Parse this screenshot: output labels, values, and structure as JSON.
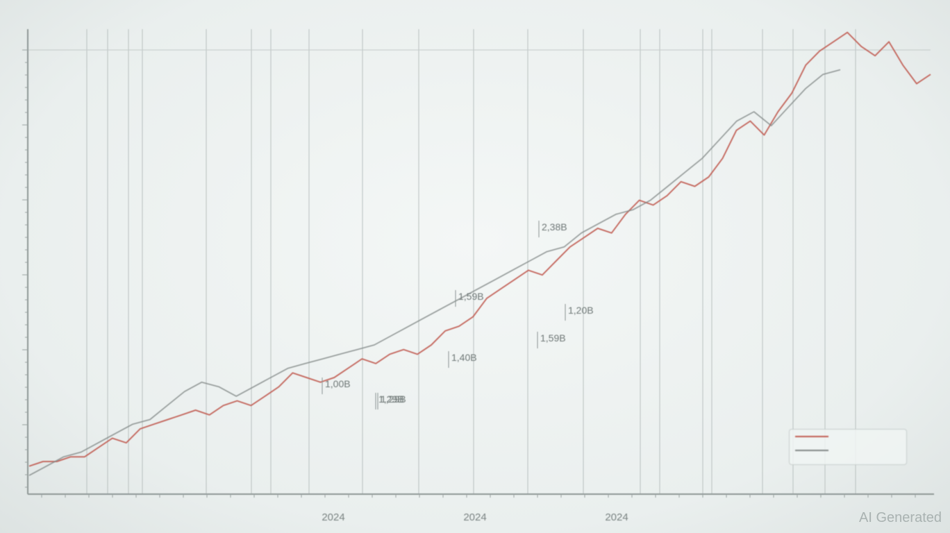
{
  "chart_data": {
    "type": "line",
    "title": "",
    "xlabel": "",
    "ylabel": "",
    "x_tick_labels": [
      "2024",
      "2024",
      "2024"
    ],
    "series": [
      {
        "name": "",
        "color": "#c0584e",
        "values": [
          6,
          7,
          7,
          8,
          8,
          10,
          12,
          11,
          14,
          15,
          16,
          17,
          18,
          17,
          19,
          20,
          19,
          21,
          23,
          26,
          25,
          24,
          25,
          27,
          29,
          28,
          30,
          31,
          30,
          32,
          35,
          36,
          38,
          42,
          44,
          46,
          48,
          47,
          50,
          53,
          55,
          57,
          56,
          60,
          63,
          62,
          64,
          67,
          66,
          68,
          72,
          78,
          80,
          77,
          82,
          86,
          92,
          95,
          97,
          99,
          96,
          94,
          97,
          92,
          88,
          90
        ]
      },
      {
        "name": "",
        "color": "#7f8584",
        "values": [
          4,
          6,
          8,
          9,
          11,
          13,
          15,
          16,
          19,
          22,
          24,
          23,
          21,
          23,
          25,
          27,
          28,
          29,
          30,
          31,
          32,
          34,
          36,
          38,
          40,
          42,
          44,
          46,
          48,
          50,
          52,
          53,
          56,
          58,
          60,
          61,
          63,
          66,
          69,
          72,
          76,
          80,
          82,
          79,
          83,
          87,
          90,
          91
        ]
      }
    ],
    "annotations": [
      "2,38B",
      "1,59B",
      "1,20B",
      "1,59B",
      "1,40B",
      "1,29B",
      "1,00B",
      "1,29B"
    ],
    "grid": true,
    "legend_position": "bottom-right",
    "legend_entries": [
      "",
      ""
    ]
  },
  "watermark_text": "AI Generated"
}
